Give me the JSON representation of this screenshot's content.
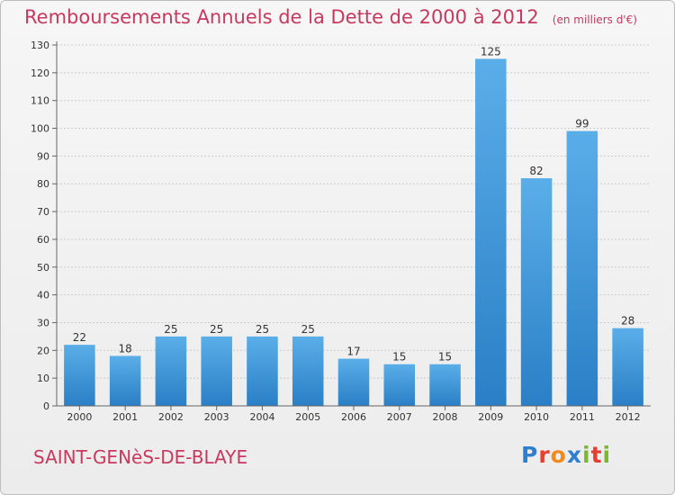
{
  "header": {
    "title": "Remboursements Annuels de la Dette de 2000 à 2012",
    "subtitle": "(en milliers d'€)"
  },
  "footer": {
    "commune": "SAINT-GENèS-DE-BLAYE",
    "logo": {
      "text": "Proxiti",
      "letters": [
        {
          "ch": "P",
          "color": "#2f7fd0"
        },
        {
          "ch": "r",
          "color": "#e63e2f"
        },
        {
          "ch": "o",
          "color": "#f08a1c"
        },
        {
          "ch": "x",
          "color": "#2f7fd0"
        },
        {
          "ch": "i",
          "color": "#7cb82f"
        },
        {
          "ch": "t",
          "color": "#e63e2f"
        },
        {
          "ch": "i",
          "color": "#7cb82f"
        }
      ]
    }
  },
  "chart_data": {
    "type": "bar",
    "categories": [
      "2000",
      "2001",
      "2002",
      "2003",
      "2004",
      "2005",
      "2006",
      "2007",
      "2008",
      "2009",
      "2010",
      "2011",
      "2012"
    ],
    "values": [
      22,
      18,
      25,
      25,
      25,
      25,
      17,
      15,
      15,
      125,
      82,
      99,
      28
    ],
    "ylim": [
      0,
      130
    ],
    "yticks": [
      0,
      10,
      20,
      30,
      40,
      50,
      60,
      70,
      80,
      90,
      100,
      110,
      120,
      130
    ],
    "grid": true,
    "data_labels": true,
    "bar_color_top": "#5aaee8",
    "bar_color_bottom": "#2a7fc6",
    "grid_color": "#cccccc",
    "axis_color": "#666666"
  }
}
